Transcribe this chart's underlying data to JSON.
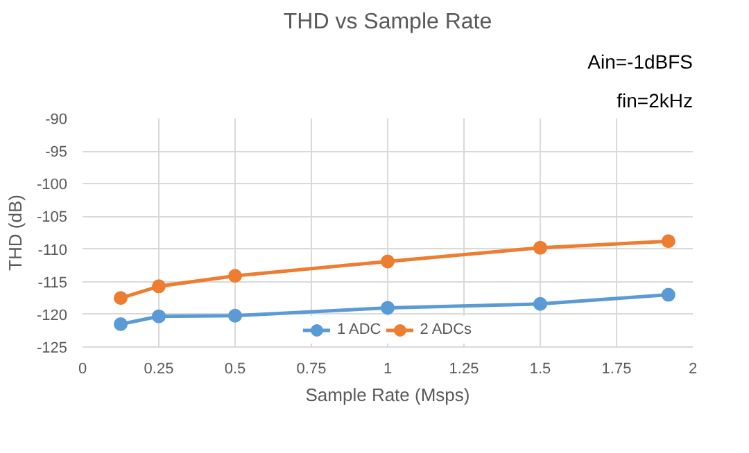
{
  "chart_data": {
    "type": "line",
    "title": "THD vs Sample Rate",
    "xlabel": "Sample Rate (Msps)",
    "ylabel": "THD (dB)",
    "annotations": [
      "fin=2kHz",
      "Ain=-1dBFS"
    ],
    "x": [
      0.125,
      0.25,
      0.5,
      1,
      1.5,
      1.92
    ],
    "series": [
      {
        "name": "1 ADC",
        "color": "#5b9bd5",
        "values": [
          -121.5,
          -120.3,
          -120.2,
          -119,
          -118.4,
          -117
        ]
      },
      {
        "name": "2 ADCs",
        "color": "#ed7d31",
        "values": [
          -117.5,
          -115.7,
          -114.1,
          -111.9,
          -109.8,
          -108.8
        ]
      }
    ],
    "xlim": [
      0,
      2
    ],
    "xticks": [
      0,
      0.25,
      0.5,
      0.75,
      1,
      1.25,
      1.5,
      1.75,
      2
    ],
    "ylim": [
      -125,
      -90
    ],
    "yticks": [
      -125,
      -120,
      -115,
      -110,
      -105,
      -100,
      -95,
      -90
    ],
    "grid": true,
    "legend": "bottom",
    "marker": "circle",
    "line_style": "solid"
  }
}
